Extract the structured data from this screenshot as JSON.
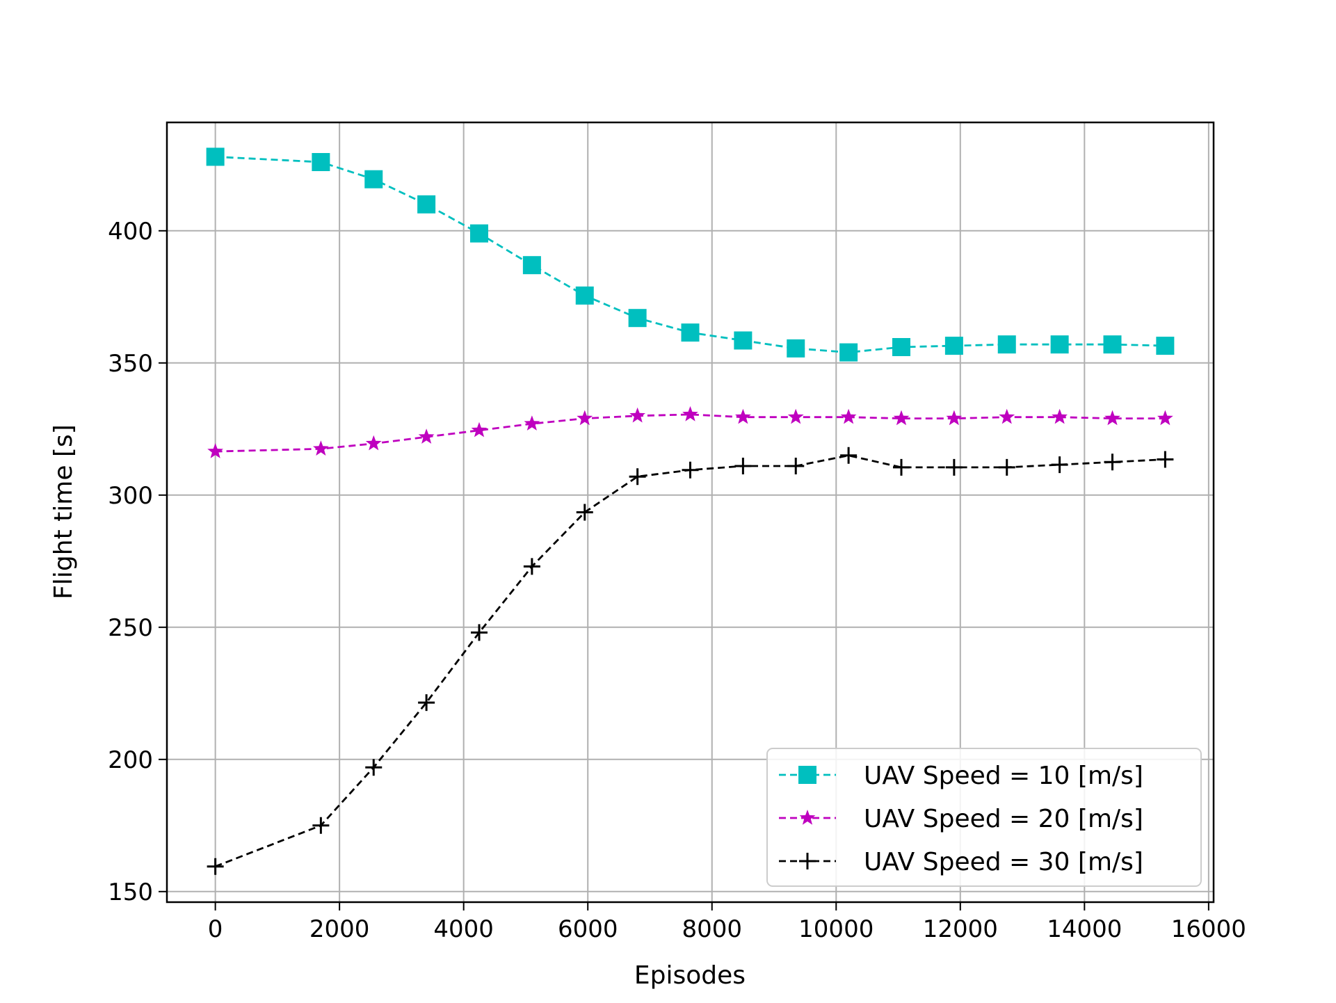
{
  "chart_data": {
    "type": "line",
    "title": "",
    "xlabel": "Episodes",
    "ylabel": "Flight time [s]",
    "xlim": [
      -780,
      16080
    ],
    "ylim": [
      146,
      441
    ],
    "xticks": [
      0,
      2000,
      4000,
      6000,
      8000,
      10000,
      12000,
      14000,
      16000
    ],
    "yticks": [
      150,
      200,
      250,
      300,
      350,
      400
    ],
    "grid": true,
    "legend_position": "lower-right",
    "x": [
      0,
      1700,
      2550,
      3400,
      4250,
      5100,
      5950,
      6800,
      7650,
      8500,
      9350,
      10200,
      11050,
      11900,
      12750,
      13600,
      14450,
      15300
    ],
    "series": [
      {
        "name": "UAV Speed = 10 [m/s]",
        "color": "#00bfbf",
        "marker": "square",
        "values": [
          428,
          426,
          419.5,
          410,
          399,
          387,
          375.5,
          367,
          361.5,
          358.5,
          355.5,
          354,
          356,
          356.5,
          357,
          357,
          357,
          356.5
        ]
      },
      {
        "name": "UAV Speed = 20 [m/s]",
        "color": "#bf00bf",
        "marker": "star",
        "values": [
          316.5,
          317.5,
          319.5,
          322,
          324.5,
          327,
          329,
          330,
          330.5,
          329.5,
          329.5,
          329.5,
          329,
          329,
          329.5,
          329.5,
          329,
          329
        ]
      },
      {
        "name": "UAV Speed = 30 [m/s]",
        "color": "#000000",
        "marker": "plus",
        "values": [
          159.5,
          175,
          197,
          221.5,
          248,
          273,
          293.5,
          307,
          309.5,
          311,
          311,
          315,
          310.5,
          310.5,
          310.5,
          311.5,
          312.5,
          313.5
        ]
      }
    ]
  }
}
